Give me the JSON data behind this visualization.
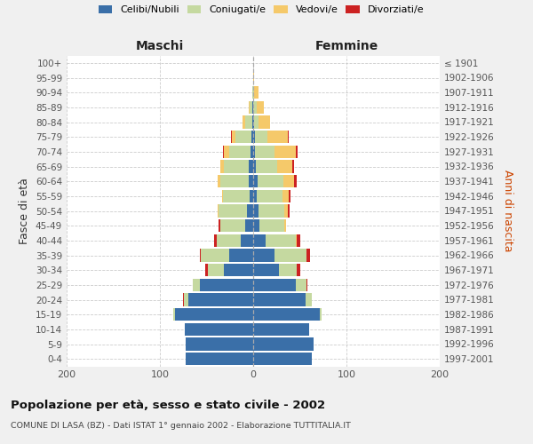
{
  "age_groups": [
    "0-4",
    "5-9",
    "10-14",
    "15-19",
    "20-24",
    "25-29",
    "30-34",
    "35-39",
    "40-44",
    "45-49",
    "50-54",
    "55-59",
    "60-64",
    "65-69",
    "70-74",
    "75-79",
    "80-84",
    "85-89",
    "90-94",
    "95-99",
    "100+"
  ],
  "birth_years": [
    "1997-2001",
    "1992-1996",
    "1987-1991",
    "1982-1986",
    "1977-1981",
    "1972-1976",
    "1967-1971",
    "1962-1966",
    "1957-1961",
    "1952-1956",
    "1947-1951",
    "1942-1946",
    "1937-1941",
    "1932-1936",
    "1927-1931",
    "1922-1926",
    "1917-1921",
    "1912-1916",
    "1907-1911",
    "1902-1906",
    "≤ 1901"
  ],
  "males": {
    "celibi": [
      72,
      72,
      73,
      84,
      70,
      57,
      31,
      26,
      13,
      9,
      7,
      4,
      5,
      5,
      3,
      2,
      1,
      1,
      0,
      0,
      0
    ],
    "coniugati": [
      0,
      0,
      0,
      2,
      4,
      8,
      18,
      30,
      26,
      26,
      30,
      28,
      30,
      26,
      23,
      17,
      8,
      3,
      1,
      0,
      0
    ],
    "vedovi": [
      0,
      0,
      0,
      0,
      0,
      0,
      0,
      0,
      0,
      0,
      1,
      1,
      3,
      4,
      5,
      4,
      2,
      1,
      0,
      0,
      0
    ],
    "divorziati": [
      0,
      0,
      0,
      0,
      1,
      0,
      2,
      1,
      3,
      2,
      0,
      0,
      0,
      0,
      1,
      1,
      0,
      0,
      0,
      0,
      0
    ]
  },
  "females": {
    "nubili": [
      63,
      65,
      60,
      71,
      56,
      46,
      28,
      23,
      13,
      7,
      6,
      4,
      5,
      3,
      2,
      2,
      1,
      0,
      0,
      0,
      0
    ],
    "coniugate": [
      0,
      0,
      0,
      2,
      7,
      11,
      19,
      34,
      33,
      26,
      27,
      27,
      27,
      23,
      21,
      13,
      5,
      4,
      1,
      0,
      0
    ],
    "vedove": [
      0,
      0,
      0,
      0,
      0,
      0,
      0,
      0,
      1,
      2,
      4,
      7,
      12,
      16,
      23,
      22,
      12,
      7,
      5,
      1,
      0
    ],
    "divorziate": [
      0,
      0,
      0,
      0,
      0,
      1,
      3,
      4,
      3,
      0,
      2,
      2,
      3,
      2,
      2,
      1,
      0,
      0,
      0,
      0,
      0
    ]
  },
  "colors": {
    "celibi": "#3A6FA8",
    "coniugati": "#C5D9A0",
    "vedovi": "#F5C96A",
    "divorziati": "#CC2222"
  },
  "xlim": 200,
  "title": "Popolazione per età, sesso e stato civile - 2002",
  "subtitle": "COMUNE DI LASA (BZ) - Dati ISTAT 1° gennaio 2002 - Elaborazione TUTTITALIA.IT",
  "ylabel_left": "Fasce di età",
  "ylabel_right": "Anni di nascita",
  "xlabel_left": "Maschi",
  "xlabel_right": "Femmine",
  "bg_color": "#f0f0f0",
  "plot_bg": "#ffffff"
}
